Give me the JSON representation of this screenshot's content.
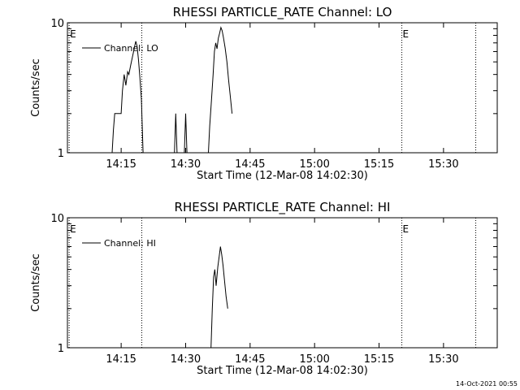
{
  "footer": {
    "timestamp": "14-Oct-2021 00:55"
  },
  "chart_data": [
    {
      "type": "line",
      "title": "RHESSI PARTICLE_RATE Channel: LO",
      "xlabel": "Start Time (12-Mar-08 14:02:30)",
      "ylabel": "Counts/sec",
      "x_unit": "minutes after 14:02:30",
      "xlim": [
        0,
        100
      ],
      "ylim": [
        1,
        10
      ],
      "yscale": "log",
      "x_ticks": [
        {
          "x": 12.5,
          "label": "14:15"
        },
        {
          "x": 27.5,
          "label": "14:30"
        },
        {
          "x": 42.5,
          "label": "14:45"
        },
        {
          "x": 57.5,
          "label": "15:00"
        },
        {
          "x": 72.5,
          "label": "15:15"
        },
        {
          "x": 87.5,
          "label": "15:30"
        }
      ],
      "y_ticks": [
        {
          "y": 1,
          "label": "1"
        },
        {
          "y": 10,
          "label": "10"
        }
      ],
      "legend": {
        "placement": "top-left",
        "label": "Channel: LO"
      },
      "event_markers": [
        {
          "x": 0.4,
          "label": "E"
        },
        {
          "x": 17.3,
          "label": ""
        },
        {
          "x": 77.8,
          "label": "E"
        },
        {
          "x": 95.0,
          "label": ""
        }
      ],
      "series": [
        {
          "name": "Channel: LO",
          "segments": [
            {
              "x": [
                10.4,
                10.7,
                11.0,
                11.3,
                11.7,
                12.1,
                12.5,
                12.8,
                13.2,
                13.6,
                14.0,
                14.3,
                14.7,
                15.0,
                15.3,
                15.6,
                15.9,
                16.2,
                16.5,
                16.8,
                17.2,
                17.6
              ],
              "y": [
                1.0,
                1.5,
                2.0,
                2.0,
                2.0,
                2.0,
                2.0,
                3.0,
                4.0,
                3.3,
                4.2,
                4.0,
                4.7,
                5.2,
                5.8,
                6.5,
                7.2,
                6.6,
                5.3,
                4.0,
                2.6,
                1.0
              ]
            },
            {
              "x": [
                24.9,
                25.2,
                25.5
              ],
              "y": [
                1.0,
                2.0,
                1.0
              ]
            },
            {
              "x": [
                27.2,
                27.5,
                27.8
              ],
              "y": [
                1.0,
                2.0,
                1.0
              ]
            },
            {
              "x": [
                32.8,
                33.1,
                33.5,
                33.9,
                34.2,
                34.5,
                34.8,
                35.1,
                35.4,
                35.7,
                36.0,
                36.3,
                36.7,
                37.1,
                37.5,
                37.9,
                38.3
              ],
              "y": [
                1.0,
                1.6,
                2.5,
                4.0,
                6.0,
                7.0,
                6.3,
                7.6,
                8.3,
                9.2,
                8.7,
                7.7,
                6.4,
                5.0,
                3.6,
                2.7,
                2.0
              ]
            }
          ]
        }
      ]
    },
    {
      "type": "line",
      "title": "RHESSI PARTICLE_RATE Channel: HI",
      "xlabel": "Start Time (12-Mar-08 14:02:30)",
      "ylabel": "Counts/sec",
      "x_unit": "minutes after 14:02:30",
      "xlim": [
        0,
        100
      ],
      "ylim": [
        1,
        10
      ],
      "yscale": "log",
      "x_ticks": [
        {
          "x": 12.5,
          "label": "14:15"
        },
        {
          "x": 27.5,
          "label": "14:30"
        },
        {
          "x": 42.5,
          "label": "14:45"
        },
        {
          "x": 57.5,
          "label": "15:00"
        },
        {
          "x": 72.5,
          "label": "15:15"
        },
        {
          "x": 87.5,
          "label": "15:30"
        }
      ],
      "y_ticks": [
        {
          "y": 1,
          "label": "1"
        },
        {
          "y": 10,
          "label": "10"
        }
      ],
      "legend": {
        "placement": "top-left",
        "label": "Channel: HI"
      },
      "event_markers": [
        {
          "x": 0.4,
          "label": "E"
        },
        {
          "x": 17.3,
          "label": ""
        },
        {
          "x": 77.8,
          "label": "E"
        },
        {
          "x": 95.0,
          "label": ""
        }
      ],
      "series": [
        {
          "name": "Channel: HI",
          "segments": [
            {
              "x": [
                33.4,
                33.7,
                34.0,
                34.3,
                34.6,
                35.0,
                35.3,
                35.6,
                35.9,
                36.2,
                36.5,
                36.9,
                37.3
              ],
              "y": [
                1.0,
                2.0,
                3.5,
                4.0,
                3.0,
                4.2,
                5.0,
                6.0,
                5.2,
                4.3,
                3.4,
                2.5,
                2.0
              ]
            }
          ]
        }
      ]
    }
  ]
}
